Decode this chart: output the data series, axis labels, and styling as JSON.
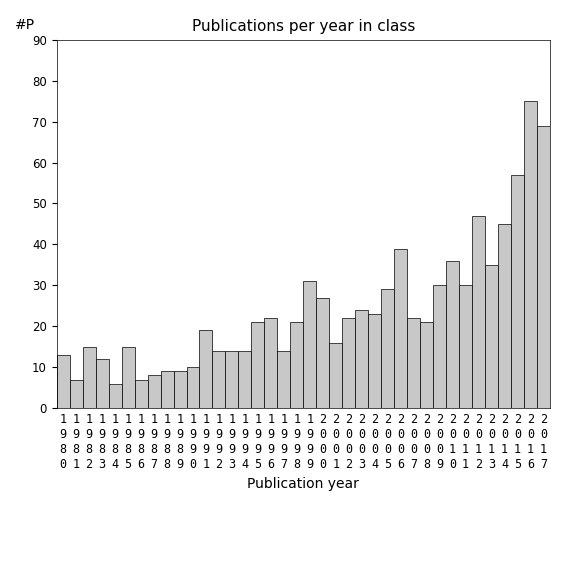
{
  "title": "Publications per year in class",
  "xlabel": "Publication year",
  "ylabel": "#P",
  "years": [
    1980,
    1981,
    1982,
    1983,
    1984,
    1985,
    1986,
    1987,
    1988,
    1989,
    1990,
    1991,
    1992,
    1993,
    1994,
    1995,
    1996,
    1997,
    1998,
    1999,
    2000,
    2001,
    2002,
    2003,
    2004,
    2005,
    2006,
    2007,
    2008,
    2009,
    2010,
    2011,
    2012,
    2013,
    2014,
    2015,
    2016,
    2017
  ],
  "values": [
    13,
    7,
    15,
    12,
    6,
    15,
    7,
    8,
    9,
    9,
    10,
    19,
    14,
    14,
    14,
    21,
    22,
    14,
    21,
    31,
    27,
    16,
    22,
    24,
    23,
    29,
    39,
    22,
    21,
    30,
    36,
    30,
    47,
    35,
    45,
    57,
    75,
    69
  ],
  "ylim": [
    0,
    90
  ],
  "yticks": [
    0,
    10,
    20,
    30,
    40,
    50,
    60,
    70,
    80,
    90
  ],
  "bar_color": "#c8c8c8",
  "bar_edge_color": "#000000",
  "bar_edge_width": 0.5,
  "bg_color": "#ffffff",
  "title_fontsize": 11,
  "label_fontsize": 10,
  "tick_fontsize": 8.5
}
